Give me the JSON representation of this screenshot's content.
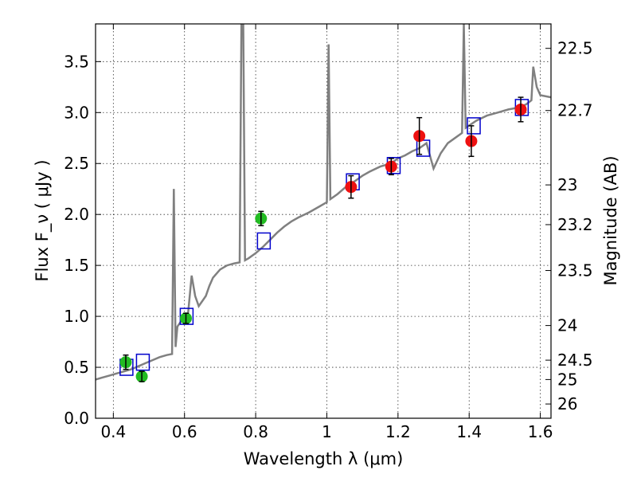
{
  "chart_data": {
    "type": "scatter",
    "xlabel": "Wavelength  λ (μm)",
    "ylabel": "Flux  F_ν  ( μJy )",
    "ylabel_right": "Magnitude (AB)",
    "xlim": [
      0.35,
      1.63
    ],
    "ylim": [
      0.0,
      3.87
    ],
    "x_ticks": [
      0.4,
      0.6,
      0.8,
      1.0,
      1.2,
      1.4,
      1.6
    ],
    "x_tick_labels": [
      "0.4",
      "0.6",
      "0.8",
      "1",
      "1.2",
      "1.4",
      "1.6"
    ],
    "y_ticks": [
      0.0,
      0.5,
      1.0,
      1.5,
      2.0,
      2.5,
      3.0,
      3.5
    ],
    "y_tick_labels": [
      "0.0",
      "0.5",
      "1.0",
      "1.5",
      "2.0",
      "2.5",
      "3.0",
      "3.5"
    ],
    "right_ticks": [
      {
        "label": "22.5",
        "flux": 3.63
      },
      {
        "label": "22.7",
        "flux": 3.02
      },
      {
        "label": "23",
        "flux": 2.29
      },
      {
        "label": "23.2",
        "flux": 1.9
      },
      {
        "label": "23.5",
        "flux": 1.45
      },
      {
        "label": "24",
        "flux": 0.91
      },
      {
        "label": "24.5",
        "flux": 0.57
      },
      {
        "label": "25",
        "flux": 0.38
      },
      {
        "label": "26",
        "flux": 0.14
      }
    ],
    "grid": true,
    "colors": {
      "spectrum": "#808080",
      "model_box": "#0000cc",
      "green_point": "#22bb22",
      "red_point": "#ee1111",
      "errorbar": "#000000"
    },
    "series": [
      {
        "kind": "line",
        "points": [
          [
            0.35,
            0.38
          ],
          [
            0.37,
            0.4
          ],
          [
            0.39,
            0.42
          ],
          [
            0.41,
            0.44
          ],
          [
            0.43,
            0.46
          ],
          [
            0.45,
            0.48
          ],
          [
            0.47,
            0.51
          ],
          [
            0.49,
            0.54
          ],
          [
            0.51,
            0.57
          ],
          [
            0.53,
            0.6
          ],
          [
            0.55,
            0.62
          ],
          [
            0.565,
            0.63
          ],
          [
            0.57,
            2.25
          ],
          [
            0.575,
            0.7
          ],
          [
            0.58,
            0.9
          ],
          [
            0.59,
            0.95
          ],
          [
            0.6,
            1.0
          ],
          [
            0.61,
            1.03
          ],
          [
            0.62,
            1.4
          ],
          [
            0.63,
            1.2
          ],
          [
            0.64,
            1.1
          ],
          [
            0.65,
            1.15
          ],
          [
            0.66,
            1.2
          ],
          [
            0.67,
            1.3
          ],
          [
            0.68,
            1.38
          ],
          [
            0.7,
            1.46
          ],
          [
            0.72,
            1.5
          ],
          [
            0.74,
            1.52
          ],
          [
            0.755,
            1.53
          ],
          [
            0.76,
            3.87
          ],
          [
            0.765,
            3.87
          ],
          [
            0.77,
            1.55
          ],
          [
            0.78,
            1.57
          ],
          [
            0.8,
            1.62
          ],
          [
            0.82,
            1.68
          ],
          [
            0.84,
            1.75
          ],
          [
            0.86,
            1.82
          ],
          [
            0.88,
            1.88
          ],
          [
            0.9,
            1.93
          ],
          [
            0.92,
            1.97
          ],
          [
            0.95,
            2.02
          ],
          [
            0.98,
            2.08
          ],
          [
            1.0,
            2.12
          ],
          [
            1.005,
            3.67
          ],
          [
            1.01,
            2.15
          ],
          [
            1.03,
            2.2
          ],
          [
            1.05,
            2.26
          ],
          [
            1.08,
            2.33
          ],
          [
            1.1,
            2.38
          ],
          [
            1.12,
            2.42
          ],
          [
            1.15,
            2.47
          ],
          [
            1.18,
            2.5
          ],
          [
            1.2,
            2.55
          ],
          [
            1.22,
            2.58
          ],
          [
            1.24,
            2.62
          ],
          [
            1.26,
            2.65
          ],
          [
            1.28,
            2.7
          ],
          [
            1.3,
            2.45
          ],
          [
            1.32,
            2.6
          ],
          [
            1.34,
            2.7
          ],
          [
            1.36,
            2.75
          ],
          [
            1.38,
            2.8
          ],
          [
            1.385,
            3.87
          ],
          [
            1.39,
            2.85
          ],
          [
            1.42,
            2.92
          ],
          [
            1.45,
            2.97
          ],
          [
            1.48,
            3.0
          ],
          [
            1.51,
            3.03
          ],
          [
            1.54,
            3.05
          ],
          [
            1.56,
            3.08
          ],
          [
            1.575,
            3.12
          ],
          [
            1.58,
            3.45
          ],
          [
            1.59,
            3.25
          ],
          [
            1.6,
            3.17
          ],
          [
            1.63,
            3.15
          ]
        ]
      },
      {
        "kind": "model_boxes",
        "points": [
          [
            0.437,
            0.5
          ],
          [
            0.483,
            0.55
          ],
          [
            0.606,
            1.0
          ],
          [
            0.823,
            1.74
          ],
          [
            1.073,
            2.32
          ],
          [
            1.188,
            2.48
          ],
          [
            1.271,
            2.65
          ],
          [
            1.413,
            2.87
          ],
          [
            1.548,
            3.05
          ]
        ]
      },
      {
        "kind": "points_green",
        "points": [
          [
            0.435,
            0.55,
            0.07
          ],
          [
            0.48,
            0.41,
            0.05
          ],
          [
            0.604,
            0.98,
            0.05
          ],
          [
            0.815,
            1.96,
            0.07
          ]
        ]
      },
      {
        "kind": "points_red",
        "points": [
          [
            1.068,
            2.27,
            0.11
          ],
          [
            1.181,
            2.47,
            0.08
          ],
          [
            1.26,
            2.77,
            0.18
          ],
          [
            1.406,
            2.72,
            0.15
          ],
          [
            1.545,
            3.03,
            0.12
          ]
        ]
      }
    ]
  }
}
